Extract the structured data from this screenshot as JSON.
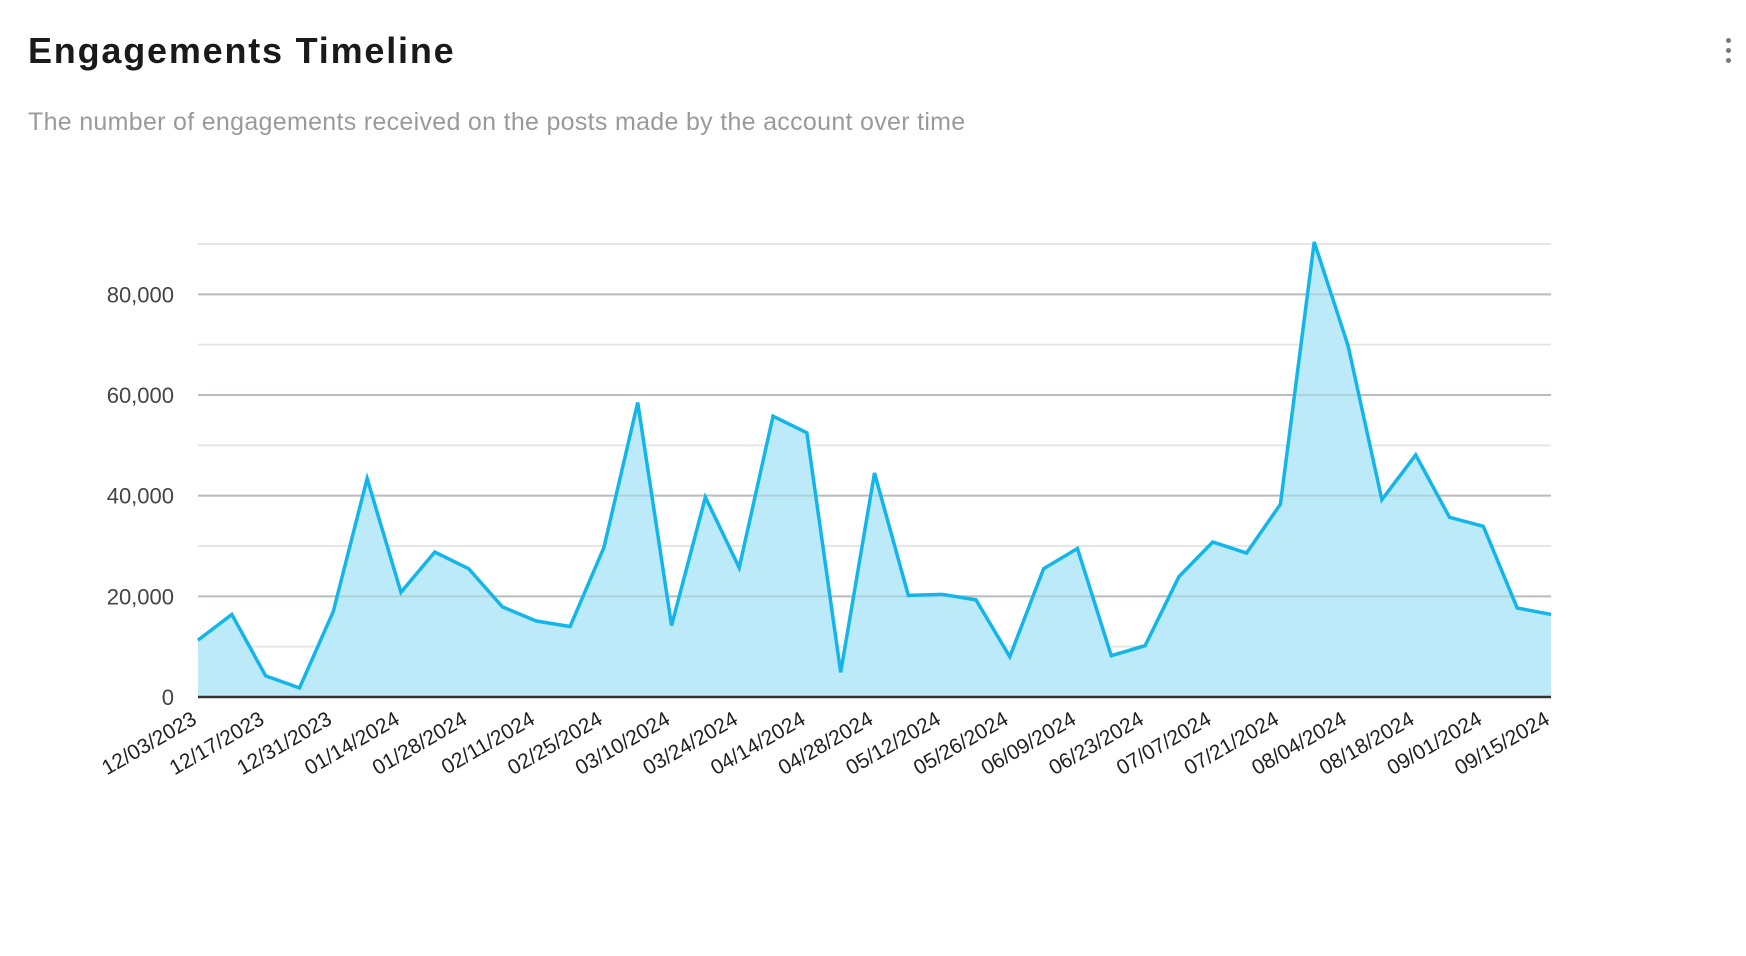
{
  "header": {
    "title": "Engagements Timeline",
    "subtitle": "The number of engagements received on the posts made by the account over time",
    "menu_icon": "kebab-menu-icon"
  },
  "chart_data": {
    "type": "area",
    "title": "Engagements Timeline",
    "xlabel": "",
    "ylabel": "",
    "ylim": [
      0,
      90000
    ],
    "yticks": [
      0,
      20000,
      40000,
      60000,
      80000
    ],
    "ytick_labels": [
      "0",
      "20,000",
      "40,000",
      "60,000",
      "80,000"
    ],
    "grid": true,
    "line_color": "#13b5ea",
    "fill_color": "#b8e9f8",
    "x_tick_labels": [
      "12/03/2023",
      "12/17/2023",
      "12/31/2023",
      "01/14/2024",
      "01/28/2024",
      "02/11/2024",
      "02/25/2024",
      "03/10/2024",
      "03/24/2024",
      "04/14/2024",
      "04/28/2024",
      "05/12/2024",
      "05/26/2024",
      "06/09/2024",
      "06/23/2024",
      "07/07/2024",
      "07/21/2024",
      "08/04/2024",
      "08/18/2024",
      "09/01/2024",
      "09/15/2024"
    ],
    "x": [
      "12/03/2023",
      "12/10/2023",
      "12/17/2023",
      "12/24/2023",
      "12/31/2023",
      "01/07/2024",
      "01/14/2024",
      "01/21/2024",
      "01/28/2024",
      "02/04/2024",
      "02/11/2024",
      "02/18/2024",
      "02/25/2024",
      "03/03/2024",
      "03/10/2024",
      "03/17/2024",
      "03/24/2024",
      "03/31/2024",
      "04/14/2024",
      "04/21/2024",
      "04/28/2024",
      "05/05/2024",
      "05/12/2024",
      "05/19/2024",
      "05/26/2024",
      "06/02/2024",
      "06/09/2024",
      "06/16/2024",
      "06/23/2024",
      "06/30/2024",
      "07/07/2024",
      "07/14/2024",
      "07/21/2024",
      "07/28/2024",
      "08/04/2024",
      "08/11/2024",
      "08/18/2024",
      "08/25/2024",
      "09/01/2024",
      "09/08/2024",
      "09/15/2024"
    ],
    "values": [
      11300,
      16400,
      4200,
      1800,
      17000,
      43400,
      20800,
      28800,
      25500,
      17900,
      15100,
      14000,
      29700,
      58500,
      14200,
      39700,
      25700,
      55800,
      52500,
      4900,
      44500,
      20200,
      20400,
      19300,
      8000,
      25500,
      29500,
      8200,
      10200,
      23900,
      30800,
      28600,
      38300,
      90400,
      69800,
      39200,
      48100,
      35700,
      33900,
      17700,
      16400
    ]
  }
}
